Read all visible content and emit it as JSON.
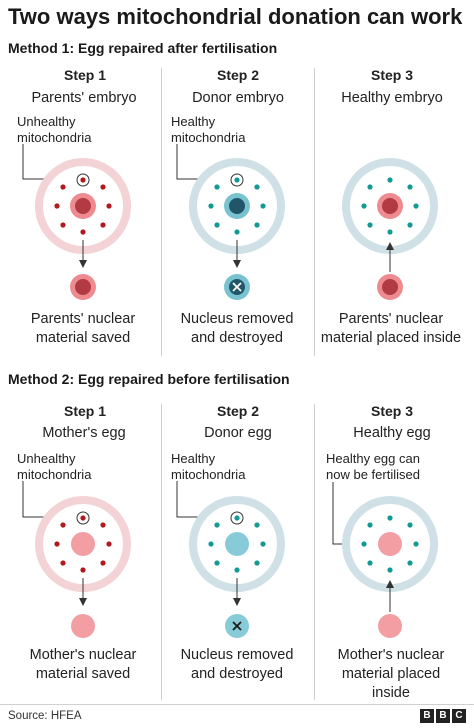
{
  "title": "Two ways mitochondrial donation can work",
  "colors": {
    "parent_ring": "#f3d3d5",
    "donor_ring": "#cfe1e6",
    "parent_dot": "#b0191e",
    "donor_dot": "#139a95",
    "nucleus_parent_outer": "#ee8b91",
    "nucleus_parent_inner": "#b23a42",
    "nucleus_donor_outer": "#79c2d0",
    "nucleus_donor_inner": "#215669",
    "egg_nucleus": "#f29ea3",
    "egg_nucleus_donor": "#88cbd8"
  },
  "method1": {
    "heading": "Method 1: Egg repaired after fertilisation",
    "steps": [
      {
        "step": "Step 1",
        "subtitle": "Parents' embryo",
        "label": "Unhealthy\nmitochondria",
        "caption": "Parents' nuclear\nmaterial saved"
      },
      {
        "step": "Step 2",
        "subtitle": "Donor embryo",
        "label": "Healthy\nmitochondria",
        "caption": "Nucleus removed\nand destroyed",
        "icon": "x-icon"
      },
      {
        "step": "Step 3",
        "subtitle": "Healthy embryo",
        "caption": "Parents' nuclear\nmaterial placed inside"
      }
    ]
  },
  "method2": {
    "heading": "Method 2: Egg repaired before fertilisation",
    "steps": [
      {
        "step": "Step 1",
        "subtitle": "Mother's egg",
        "label": "Unhealthy\nmitochondria",
        "caption": "Mother's nuclear\nmaterial saved"
      },
      {
        "step": "Step 2",
        "subtitle": "Donor egg",
        "label": "Healthy\nmitochondria",
        "caption": "Nucleus removed\nand destroyed",
        "icon": "x-icon"
      },
      {
        "step": "Step 3",
        "subtitle": "Healthy egg",
        "label": "Healthy egg can\nnow be fertilised",
        "caption": "Mother's nuclear\nmaterial placed\ninside"
      }
    ]
  },
  "footer": {
    "source": "Source: HFEA",
    "logo_letters": [
      "B",
      "B",
      "C"
    ]
  }
}
